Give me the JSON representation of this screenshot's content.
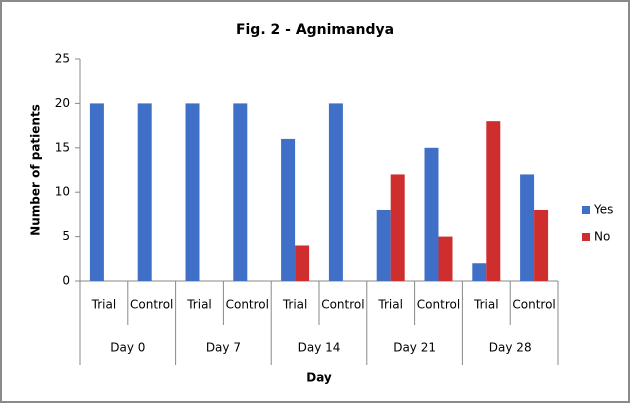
{
  "chart_data": {
    "type": "bar",
    "title": "Fig. 2 - Agnimandya",
    "y_label": "Number of patients",
    "x_label": "Day",
    "categories": [
      "Trial",
      "Control",
      "Trial",
      "Control",
      "Trial",
      "Control",
      "Trial",
      "Control",
      "Trial",
      "Control"
    ],
    "groups": [
      "Day 0",
      "Day 7",
      "Day 14",
      "Day 21",
      "Day 28"
    ],
    "series": [
      {
        "name": "Yes",
        "color": "#3f6fc6",
        "values": [
          20,
          20,
          20,
          20,
          16,
          20,
          8,
          15,
          2,
          12
        ]
      },
      {
        "name": "No",
        "color": "#cf2e2e",
        "values": [
          0,
          0,
          0,
          0,
          4,
          0,
          12,
          5,
          18,
          8
        ]
      }
    ],
    "ylim": [
      0,
      25
    ],
    "yticks": [
      0,
      5,
      10,
      15,
      20,
      25
    ],
    "grid": false,
    "legend": "right"
  }
}
